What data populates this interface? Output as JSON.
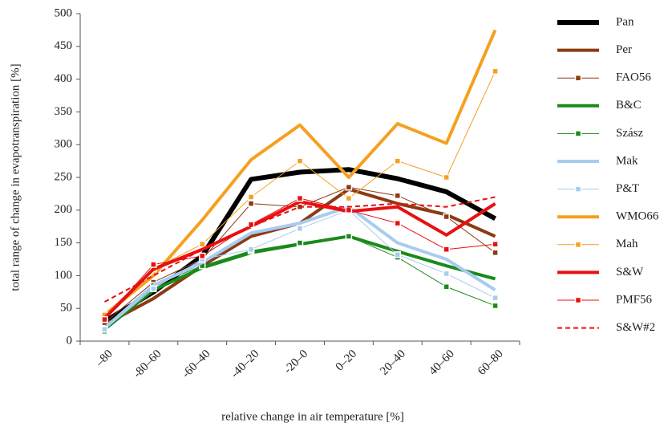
{
  "chart_data": {
    "type": "line",
    "x_label": "relative change in air temperature [%]",
    "y_label": "total range of change in evapotranspiration [%]",
    "categories": [
      "–80",
      "-80–60",
      "-60–40",
      "-40–20",
      "-20–0",
      "0–20",
      "20–40",
      "40–60",
      "60–80"
    ],
    "ylim": [
      0,
      500
    ],
    "yticks": [
      0,
      50,
      100,
      150,
      200,
      250,
      300,
      350,
      400,
      450,
      500
    ],
    "grid": false,
    "legend": "right",
    "series": [
      {
        "name": "Pan",
        "color": "#000000",
        "width": 6,
        "dash": "solid",
        "marker": false,
        "values": [
          30,
          75,
          130,
          247,
          258,
          262,
          248,
          228,
          187
        ]
      },
      {
        "name": "Per",
        "color": "#8b3a14",
        "width": 4,
        "dash": "solid",
        "marker": false,
        "values": [
          25,
          65,
          115,
          160,
          180,
          232,
          210,
          193,
          160
        ]
      },
      {
        "name": "FAO56",
        "color": "#8b3a14",
        "width": 1,
        "dash": "solid",
        "marker": true,
        "values": [
          28,
          90,
          125,
          210,
          205,
          235,
          222,
          190,
          135
        ]
      },
      {
        "name": "B&C",
        "color": "#1a8a1a",
        "width": 4,
        "dash": "solid",
        "marker": false,
        "values": [
          18,
          78,
          112,
          135,
          148,
          160,
          137,
          115,
          95
        ]
      },
      {
        "name": "Szász",
        "color": "#1a8a1a",
        "width": 1,
        "dash": "solid",
        "marker": true,
        "values": [
          15,
          85,
          115,
          138,
          150,
          160,
          128,
          83,
          54
        ]
      },
      {
        "name": "Mak",
        "color": "#a8ccf0",
        "width": 4,
        "dash": "solid",
        "marker": false,
        "values": [
          20,
          85,
          120,
          165,
          180,
          205,
          150,
          125,
          78
        ]
      },
      {
        "name": "P&T",
        "color": "#a8ccf0",
        "width": 1,
        "dash": "solid",
        "marker": true,
        "values": [
          18,
          80,
          125,
          140,
          172,
          200,
          132,
          103,
          66
        ]
      },
      {
        "name": "WMO66",
        "color": "#f5a020",
        "width": 4,
        "dash": "solid",
        "marker": false,
        "values": [
          40,
          100,
          185,
          277,
          330,
          250,
          332,
          302,
          475
        ]
      },
      {
        "name": "Mah",
        "color": "#f5a020",
        "width": 1,
        "dash": "solid",
        "marker": true,
        "values": [
          40,
          110,
          148,
          220,
          275,
          218,
          275,
          250,
          412
        ]
      },
      {
        "name": "S&W",
        "color": "#e81010",
        "width": 4,
        "dash": "solid",
        "marker": false,
        "values": [
          35,
          110,
          140,
          175,
          213,
          198,
          205,
          162,
          210
        ]
      },
      {
        "name": "PMF56",
        "color": "#e81010",
        "width": 1,
        "dash": "solid",
        "marker": true,
        "values": [
          33,
          117,
          130,
          178,
          218,
          200,
          180,
          140,
          148
        ]
      },
      {
        "name": "S&W#2",
        "color": "#e81010",
        "width": 2,
        "dash": "dashed",
        "marker": false,
        "values": [
          60,
          100,
          140,
          175,
          205,
          205,
          210,
          205,
          220
        ]
      }
    ]
  }
}
